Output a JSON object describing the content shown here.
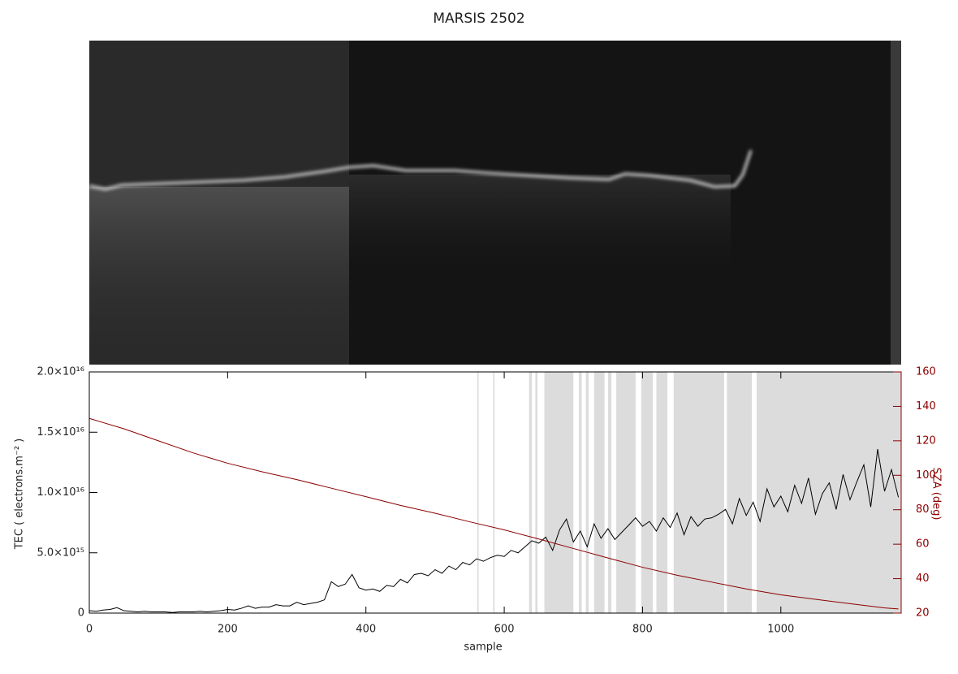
{
  "chart_data": {
    "type": "line",
    "title": "MARSIS 2502",
    "xlabel": "sample",
    "ylabel": "TEC ( electrons.m⁻² )",
    "y2label": "SZA (deg)",
    "xlim": [
      0,
      1174
    ],
    "xticks": [
      0,
      200,
      400,
      600,
      800,
      1000
    ],
    "ylim": [
      0,
      2e+16
    ],
    "yticks": [
      0,
      {
        "value": 5000000000000000.0,
        "label": "5.0×10¹⁵"
      },
      {
        "value": 1e+16,
        "label": "1.0×10¹⁶"
      },
      {
        "value": 1.5e+16,
        "label": "1.5×10¹⁶"
      },
      {
        "value": 2e+16,
        "label": "2.0×10¹⁶"
      }
    ],
    "y2lim": [
      20,
      160
    ],
    "y2ticks": [
      20,
      40,
      60,
      80,
      100,
      120,
      140,
      160
    ],
    "y2color": "#8b0000",
    "shaded_color": "#dcdcdc",
    "shaded_x": [
      [
        561,
        563
      ],
      [
        584,
        586
      ],
      [
        636,
        640
      ],
      [
        645,
        648
      ],
      [
        658,
        700
      ],
      [
        708,
        712
      ],
      [
        718,
        722
      ],
      [
        730,
        745
      ],
      [
        750,
        755
      ],
      [
        762,
        790
      ],
      [
        798,
        815
      ],
      [
        820,
        836
      ],
      [
        845,
        918
      ],
      [
        922,
        958
      ],
      [
        965,
        1174
      ]
    ],
    "series": [
      {
        "color": "#000000",
        "axis": "y",
        "x": [
          0,
          10,
          20,
          30,
          40,
          50,
          60,
          70,
          80,
          90,
          100,
          110,
          120,
          130,
          140,
          150,
          160,
          170,
          180,
          190,
          200,
          210,
          220,
          230,
          240,
          250,
          260,
          270,
          280,
          290,
          300,
          310,
          320,
          330,
          340,
          350,
          360,
          370,
          380,
          390,
          400,
          410,
          420,
          430,
          440,
          450,
          460,
          470,
          480,
          490,
          500,
          510,
          520,
          530,
          540,
          550,
          560,
          570,
          580,
          590,
          600,
          610,
          620,
          630,
          640,
          650,
          660,
          670,
          680,
          690,
          700,
          710,
          720,
          730,
          740,
          750,
          760,
          770,
          780,
          790,
          800,
          810,
          820,
          830,
          840,
          850,
          860,
          870,
          880,
          890,
          900,
          910,
          920,
          930,
          940,
          950,
          960,
          970,
          980,
          990,
          1000,
          1010,
          1020,
          1030,
          1040,
          1050,
          1060,
          1070,
          1080,
          1090,
          1100,
          1110,
          1120,
          1130,
          1140,
          1150,
          1160,
          1170
        ],
        "values": [
          200000000000000.0,
          150000000000000.0,
          250000000000000.0,
          300000000000000.0,
          450000000000000.0,
          200000000000000.0,
          150000000000000.0,
          100000000000000.0,
          150000000000000.0,
          100000000000000.0,
          100000000000000.0,
          100000000000000.0,
          50000000000000.0,
          100000000000000.0,
          100000000000000.0,
          100000000000000.0,
          150000000000000.0,
          100000000000000.0,
          150000000000000.0,
          200000000000000.0,
          300000000000000.0,
          250000000000000.0,
          400000000000000.0,
          600000000000000.0,
          400000000000000.0,
          500000000000000.0,
          500000000000000.0,
          700000000000000.0,
          600000000000000.0,
          600000000000000.0,
          900000000000000.0,
          700000000000000.0,
          800000000000000.0,
          900000000000000.0,
          1100000000000000.0,
          2600000000000000.0,
          2200000000000000.0,
          2400000000000000.0,
          3200000000000000.0,
          2100000000000000.0,
          1900000000000000.0,
          2000000000000000.0,
          1800000000000000.0,
          2300000000000000.0,
          2200000000000000.0,
          2800000000000000.0,
          2500000000000000.0,
          3200000000000000.0,
          3300000000000000.0,
          3100000000000000.0,
          3600000000000000.0,
          3300000000000000.0,
          3900000000000000.0,
          3600000000000000.0,
          4200000000000000.0,
          4000000000000000.0,
          4500000000000000.0,
          4300000000000000.0,
          4600000000000000.0,
          4800000000000000.0,
          4700000000000000.0,
          5200000000000000.0,
          5000000000000000.0,
          5500000000000000.0,
          6000000000000000.0,
          5800000000000000.0,
          6300000000000000.0,
          5200000000000000.0,
          6900000000000000.0,
          7800000000000000.0,
          5900000000000000.0,
          6800000000000000.0,
          5500000000000000.0,
          7400000000000000.0,
          6200000000000000.0,
          7000000000000000.0,
          6100000000000000.0,
          6700000000000000.0,
          7300000000000000.0,
          7900000000000000.0,
          7200000000000000.0,
          7600000000000000.0,
          6800000000000000.0,
          7900000000000000.0,
          7100000000000000.0,
          8300000000000000.0,
          6500000000000000.0,
          8000000000000000.0,
          7200000000000000.0,
          7800000000000000.0,
          7900000000000000.0,
          8200000000000000.0,
          8600000000000000.0,
          7400000000000000.0,
          9500000000000000.0,
          8100000000000000.0,
          9200000000000000.0,
          7600000000000000.0,
          1.03e+16,
          8800000000000000.0,
          9700000000000000.0,
          8400000000000000.0,
          1.06e+16,
          9100000000000000.0,
          1.12e+16,
          8200000000000000.0,
          9900000000000000.0,
          1.08e+16,
          8600000000000000.0,
          1.15e+16,
          9400000000000000.0,
          1.09e+16,
          1.23e+16,
          8800000000000000.0,
          1.36e+16,
          1.01e+16,
          1.19e+16,
          9600000000000000.0
        ]
      },
      {
        "color": "#8b0000",
        "axis": "y2",
        "x": [
          0,
          50,
          100,
          150,
          200,
          250,
          300,
          350,
          400,
          450,
          500,
          550,
          600,
          650,
          700,
          750,
          800,
          850,
          900,
          950,
          1000,
          1050,
          1100,
          1150,
          1170
        ],
        "values": [
          133,
          127,
          120,
          113,
          107,
          102,
          97.5,
          92.5,
          87.6,
          82.5,
          78,
          73,
          68.3,
          63,
          57.5,
          52,
          46.6,
          42,
          38,
          34,
          30.6,
          28,
          25.5,
          23,
          22.4
        ]
      }
    ]
  }
}
